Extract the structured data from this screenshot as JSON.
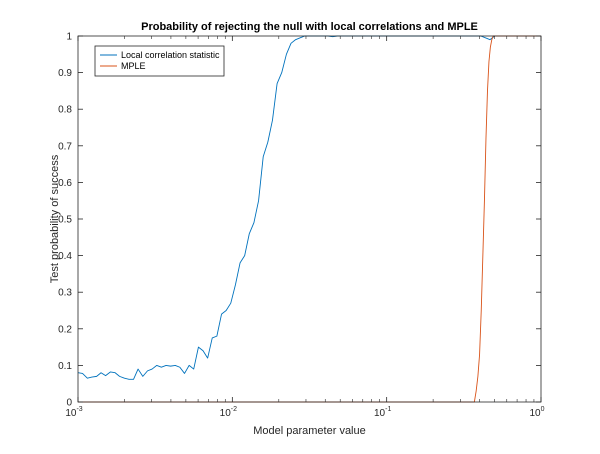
{
  "chart_data": {
    "type": "line",
    "title": "Probability of rejecting the null with local correlations and MPLE",
    "xlabel": "Model parameter value",
    "ylabel": "Test probability of success",
    "xscale": "log",
    "xlim": [
      0.001,
      1
    ],
    "ylim": [
      0,
      1
    ],
    "xticks": [
      {
        "value": 0.001,
        "base": "10",
        "exp": "-3"
      },
      {
        "value": 0.01,
        "base": "10",
        "exp": "-2"
      },
      {
        "value": 0.1,
        "base": "10",
        "exp": "-1"
      },
      {
        "value": 1,
        "base": "10",
        "exp": "0"
      }
    ],
    "yticks": [
      "0",
      "0.1",
      "0.2",
      "0.3",
      "0.4",
      "0.5",
      "0.6",
      "0.7",
      "0.8",
      "0.9",
      "1"
    ],
    "grid": false,
    "legend_position": "top-left",
    "series": [
      {
        "name": "Local correlation statistic",
        "color": "#0072bd",
        "x": [
          0.001,
          0.00107,
          0.00115,
          0.00123,
          0.00132,
          0.00141,
          0.00151,
          0.00162,
          0.00174,
          0.00186,
          0.002,
          0.00214,
          0.00229,
          0.00245,
          0.00263,
          0.00282,
          0.00302,
          0.00324,
          0.00347,
          0.00372,
          0.00398,
          0.00427,
          0.00457,
          0.0049,
          0.00525,
          0.00562,
          0.00603,
          0.00646,
          0.00692,
          0.00741,
          0.00794,
          0.00851,
          0.00912,
          0.00977,
          0.01047,
          0.01122,
          0.01202,
          0.01288,
          0.0138,
          0.01479,
          0.01585,
          0.01698,
          0.0182,
          0.0195,
          0.0209,
          0.0224,
          0.024,
          0.0257,
          0.0275,
          0.0295,
          0.0316,
          0.0339,
          0.0363,
          0.0389,
          0.0417,
          0.0447,
          0.0479,
          0.0513,
          0.055,
          0.0589,
          0.0631,
          0.0676,
          0.0724,
          0.0776,
          0.0832,
          0.0891,
          0.0955,
          0.1023,
          0.1096,
          0.1175,
          0.1259,
          0.1349,
          0.1445,
          0.1549,
          0.166,
          0.1778,
          0.1905,
          0.2042,
          0.2188,
          0.2344,
          0.2512,
          0.2692,
          0.2884,
          0.309,
          0.3311,
          0.3548,
          0.3802,
          0.4074,
          0.4365,
          0.4677,
          0.5012
        ],
        "y": [
          0.08,
          0.078,
          0.065,
          0.068,
          0.07,
          0.08,
          0.072,
          0.082,
          0.08,
          0.07,
          0.065,
          0.062,
          0.062,
          0.09,
          0.07,
          0.085,
          0.09,
          0.1,
          0.095,
          0.1,
          0.098,
          0.1,
          0.095,
          0.078,
          0.1,
          0.09,
          0.15,
          0.14,
          0.12,
          0.175,
          0.18,
          0.24,
          0.25,
          0.27,
          0.32,
          0.38,
          0.4,
          0.46,
          0.49,
          0.55,
          0.67,
          0.71,
          0.77,
          0.87,
          0.9,
          0.95,
          0.98,
          0.99,
          0.995,
          1,
          1,
          1,
          1,
          1,
          1,
          0.998,
          1,
          1,
          1,
          1,
          1,
          1,
          1,
          1,
          1,
          1,
          1,
          1,
          1,
          1,
          1,
          1,
          1,
          1,
          1,
          1,
          1,
          1,
          1,
          1,
          1,
          1,
          1,
          1,
          1,
          1,
          1,
          1,
          0.995,
          0.99,
          1
        ]
      },
      {
        "name": "MPLE",
        "color": "#d95319",
        "x": [
          0.001,
          0.37,
          0.38,
          0.39,
          0.4,
          0.41,
          0.42,
          0.43,
          0.44,
          0.45,
          0.46,
          0.47,
          0.48,
          0.49,
          0.5,
          1
        ],
        "y": [
          0,
          0,
          0.03,
          0.07,
          0.13,
          0.25,
          0.4,
          0.55,
          0.72,
          0.85,
          0.93,
          0.97,
          0.99,
          1,
          1,
          1
        ]
      }
    ]
  }
}
